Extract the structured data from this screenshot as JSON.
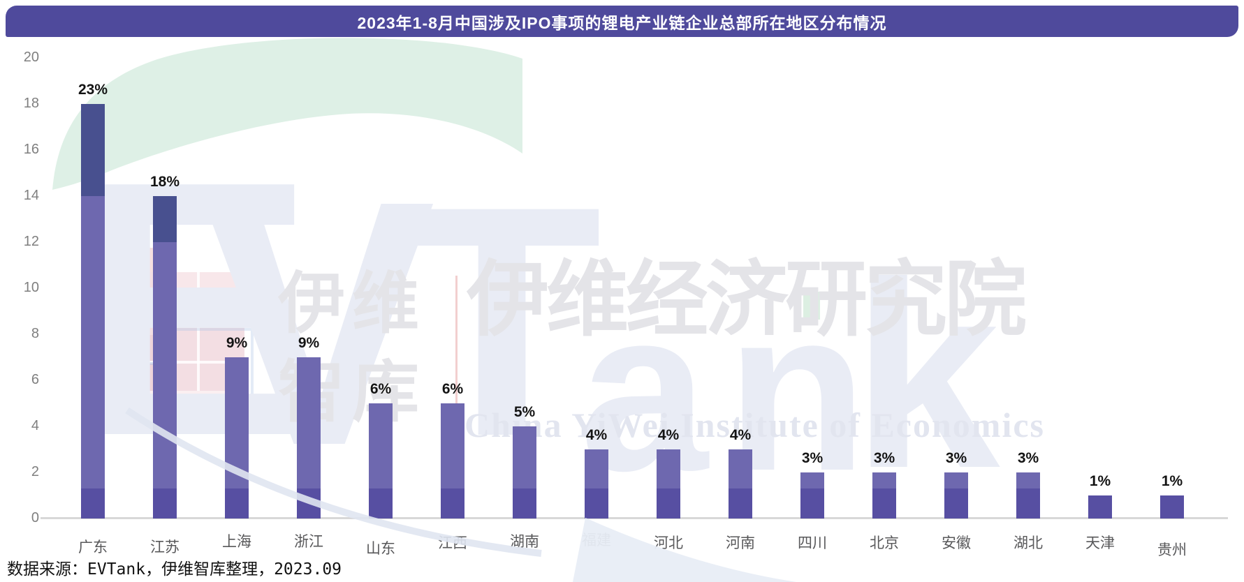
{
  "title": "2023年1-8月中国涉及IPO事项的锂电产业链企业总部所在地区分布情况",
  "source_note": "数据来源：EVTank，伊维智库整理，2023.09",
  "chart_data": {
    "type": "bar",
    "title": "2023年1-8月中国涉及IPO事项的锂电产业链企业总部所在地区分布情况",
    "categories": [
      "广东",
      "江苏",
      "上海",
      "浙江",
      "山东",
      "江西",
      "湖南",
      "福建",
      "河北",
      "河南",
      "四川",
      "北京",
      "安徽",
      "湖北",
      "天津",
      "贵州"
    ],
    "series": [
      {
        "name": "企业总部占比",
        "values_percent": [
          23,
          18,
          9,
          9,
          6,
          6,
          5,
          4,
          4,
          4,
          3,
          3,
          3,
          3,
          1,
          1
        ],
        "bar_heights_axis_units": [
          18,
          14,
          7,
          7,
          5,
          5,
          4,
          3,
          3,
          3,
          2,
          2,
          2,
          2,
          1,
          1
        ]
      }
    ],
    "value_label_suffix": "%",
    "xlabel": "",
    "ylabel": "",
    "y_axis": {
      "min": 0,
      "max": 20,
      "tick_step": 2,
      "ticks": [
        0,
        2,
        4,
        6,
        8,
        10,
        12,
        14,
        16,
        18,
        20
      ]
    },
    "grid": false,
    "legend": false
  },
  "watermark": {
    "logo_letters": [
      "E",
      "V",
      "T",
      "a",
      "n",
      "k"
    ],
    "cn_short_top": "伊维",
    "cn_short_bottom": "智库",
    "cn_main": "伊维经济研究院",
    "en_main": "China YiWei Institute of Economics"
  },
  "palette": {
    "banner_bg": "#4f4a9c",
    "banner_text": "#ffffff",
    "bar_top_dark": "#48508f",
    "bar_mid": "#6e68af",
    "bar_low": "#574fa2",
    "axis_line": "#d8d8d8",
    "y_tick_text": "#7f7f7f",
    "x_label_text": "#58585a",
    "value_label_text": "#141414",
    "wm_green": "#def0e6",
    "wm_letter": "#e9ecf5",
    "wm_gray_text": "#e4e4e8",
    "wm_pink": "#f3dee3",
    "wm_rose_line": "#f2cfcf"
  }
}
